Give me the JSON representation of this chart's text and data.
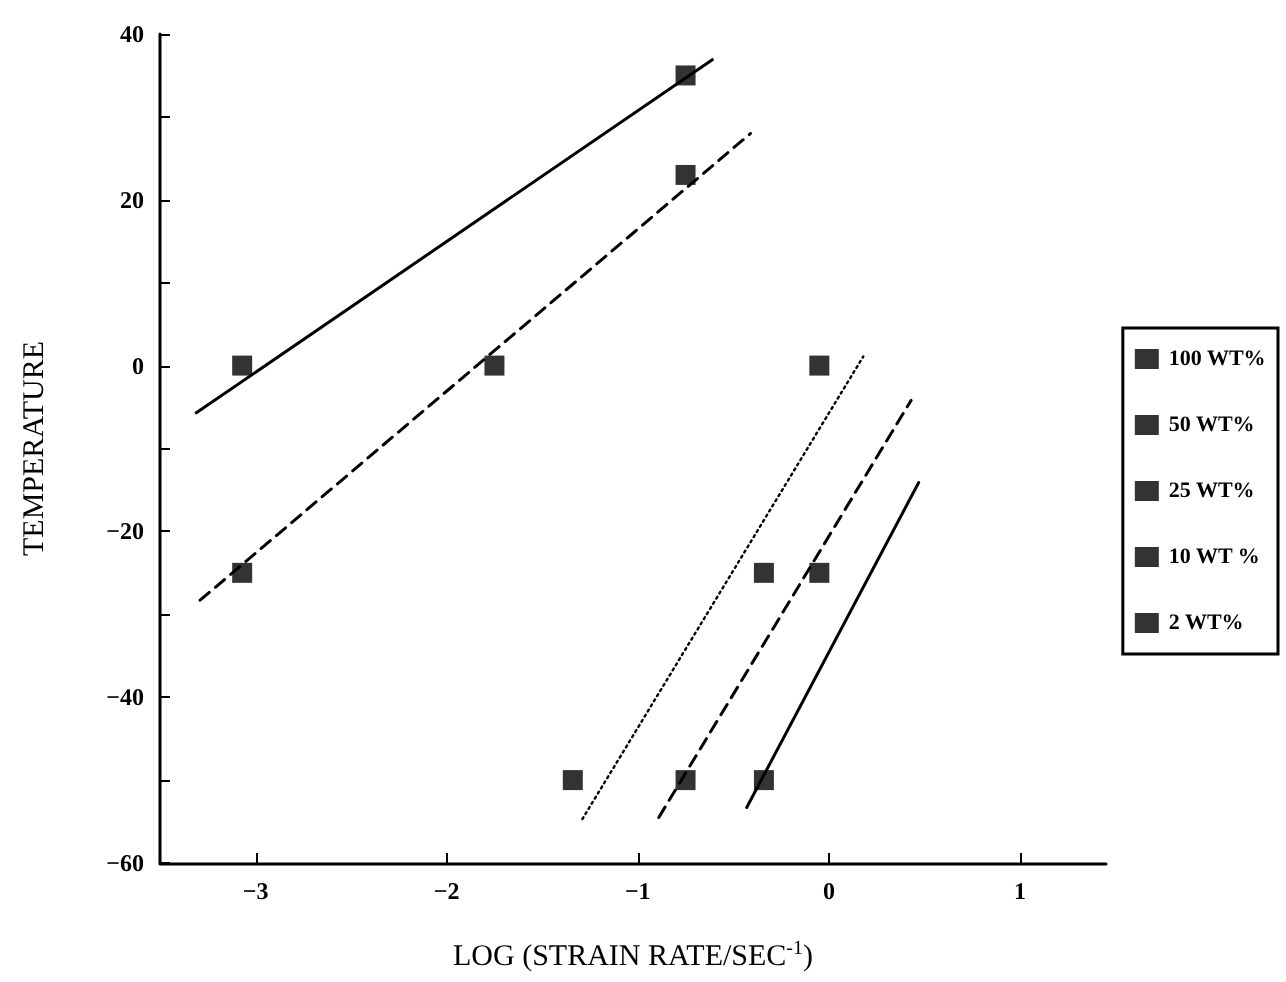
{
  "chart_data": {
    "type": "scatter",
    "xlabel": "LOG (STRAIN RATE/SEC$^{-1}$)",
    "ylabel": "TEMPERATURE",
    "xlim": [
      -3.5,
      1.45
    ],
    "xticks": [
      -3,
      -2,
      -1,
      0,
      1
    ],
    "ylim": [
      -60,
      40
    ],
    "yticks": [
      -60,
      {
        "value": -50,
        "label": null
      },
      -40,
      {
        "value": -30,
        "label": null
      },
      -20,
      {
        "value": -10,
        "label": null
      },
      0,
      {
        "value": 10,
        "label": null
      },
      20,
      {
        "value": 30,
        "label": null
      },
      40
    ],
    "grid": false,
    "legend": "right",
    "marker": "square",
    "series": [
      {
        "name": "100 WT%",
        "color": "#000000",
        "x": [
          -3.07,
          -0.75
        ],
        "values": [
          0,
          35
        ]
      },
      {
        "type": "line",
        "color": "#000000",
        "line_style": "solid",
        "marker": "none",
        "x": [
          -3.31,
          -0.61
        ],
        "values": [
          -5.7,
          36.9
        ]
      },
      {
        "name": "50 WT%",
        "color": "#000000",
        "x": [
          -3.07,
          -1.75,
          -0.75
        ],
        "values": [
          -25,
          0,
          23
        ]
      },
      {
        "type": "line",
        "color": "#000000",
        "line_style": "dashed",
        "marker": "none",
        "x": [
          -3.29,
          -0.41
        ],
        "values": [
          -28.3,
          28
        ]
      },
      {
        "name": "25 WT%",
        "color": "#000000",
        "x": [
          -1.34,
          -0.34,
          -0.05
        ],
        "values": [
          -50,
          -25,
          0
        ]
      },
      {
        "type": "line",
        "color": "#000000",
        "line_style": "dotted",
        "marker": "none",
        "x": [
          -1.29,
          0.18
        ],
        "values": [
          -54.7,
          1.1
        ]
      },
      {
        "name": "10 WT %",
        "color": "#000000",
        "x": [
          -0.75,
          -0.05
        ],
        "values": [
          -50,
          -25
        ]
      },
      {
        "type": "line",
        "color": "#000000",
        "line_style": "dashed",
        "marker": "none",
        "x": [
          -0.89,
          0.43
        ],
        "values": [
          -54.5,
          -4.2
        ]
      },
      {
        "name": "2 WT%",
        "color": "#000000",
        "x": [
          -0.34
        ],
        "values": [
          -50
        ]
      },
      {
        "type": "line",
        "color": "#000000",
        "line_style": "solid",
        "marker": "none",
        "x": [
          -0.43,
          0.47
        ],
        "values": [
          -53.3,
          -14.1
        ]
      }
    ]
  }
}
